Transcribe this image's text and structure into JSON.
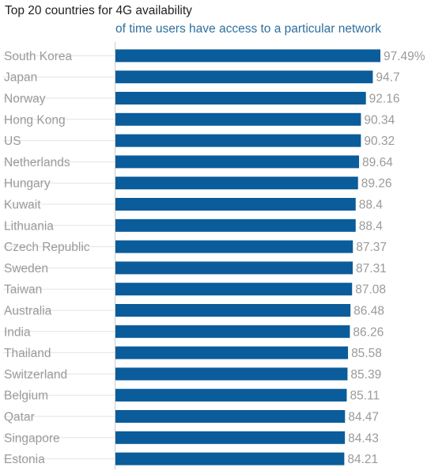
{
  "chart_data": {
    "type": "bar",
    "orientation": "horizontal",
    "title": "Top 20 countries for 4G availability",
    "subtitle": "of time users have access to a particular network",
    "categories": [
      "South Korea",
      "Japan",
      "Norway",
      "Hong Kong",
      "US",
      "Netherlands",
      "Hungary",
      "Kuwait",
      "Lithuania",
      "Czech Republic",
      "Sweden",
      "Taiwan",
      "Australia",
      "India",
      "Thailand",
      "Switzerland",
      "Belgium",
      "Qatar",
      "Singapore",
      "Estonia"
    ],
    "values": [
      97.49,
      94.7,
      92.16,
      90.34,
      90.32,
      89.64,
      89.26,
      88.4,
      88.4,
      87.37,
      87.31,
      87.08,
      86.48,
      86.26,
      85.58,
      85.39,
      85.11,
      84.47,
      84.43,
      84.21
    ],
    "value_labels": [
      "97.49%",
      "94.7",
      "92.16",
      "90.34",
      "90.32",
      "89.64",
      "89.26",
      "88.4",
      "88.4",
      "87.37",
      "87.31",
      "87.08",
      "86.48",
      "86.26",
      "85.58",
      "85.39",
      "85.11",
      "84.47",
      "84.43",
      "84.21"
    ],
    "xlim": [
      0,
      97.49
    ],
    "grid": false,
    "colors": {
      "bar": "#0b5c9a",
      "label": "#9a9a9a",
      "title": "#222222",
      "subtitle": "#2e6f9e",
      "guide": "#e3e3e3",
      "axis": "#cccccc"
    }
  }
}
